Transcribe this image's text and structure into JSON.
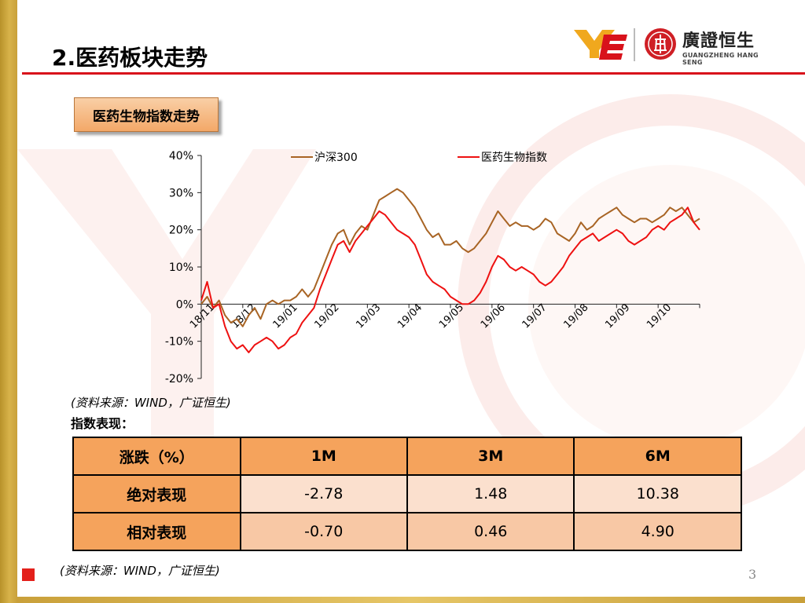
{
  "page": {
    "title": "2.医药板块走势",
    "page_number": "3"
  },
  "logo": {
    "cn": "廣證恒生",
    "en": "GUANGZHENG HANG SENG",
    "brand_color": "#cf1f25",
    "accent_color": "#f0a81e"
  },
  "section": {
    "label": "医药生物指数走势"
  },
  "chart_data": {
    "type": "line",
    "title": "",
    "xlabel": "",
    "ylabel": "",
    "y_tick_labels": [
      "40%",
      "30%",
      "20%",
      "10%",
      "0%",
      "-10%",
      "-20%"
    ],
    "ylim": [
      -20,
      40
    ],
    "x_tick_labels": [
      "18/11",
      "18/12",
      "19/01",
      "19/02",
      "19/03",
      "19/04",
      "19/05",
      "19/06",
      "19/07",
      "19/08",
      "19/09",
      "19/10"
    ],
    "legend_position": "top",
    "series": [
      {
        "name": "沪深300",
        "color": "#a86424",
        "values": [
          0,
          2,
          -1,
          1,
          -3,
          -5,
          -4,
          -6,
          -3,
          -1,
          -4,
          0,
          1,
          0,
          1,
          1,
          2,
          4,
          2,
          4,
          8,
          12,
          16,
          19,
          20,
          16,
          19,
          21,
          20,
          24,
          28,
          29,
          30,
          31,
          30,
          28,
          26,
          23,
          20,
          18,
          19,
          16,
          16,
          17,
          15,
          14,
          15,
          17,
          19,
          22,
          25,
          23,
          21,
          22,
          21,
          21,
          20,
          21,
          23,
          22,
          19,
          18,
          17,
          19,
          22,
          20,
          21,
          23,
          24,
          25,
          26,
          24,
          23,
          22,
          23,
          23,
          22,
          23,
          24,
          26,
          25,
          26,
          24,
          22,
          23
        ]
      },
      {
        "name": "医药生物指数",
        "color": "#ee1111",
        "values": [
          1,
          6,
          -1,
          0,
          -6,
          -10,
          -12,
          -11,
          -13,
          -11,
          -10,
          -9,
          -10,
          -12,
          -11,
          -9,
          -8,
          -5,
          -3,
          -1,
          4,
          8,
          12,
          16,
          17,
          14,
          17,
          19,
          21,
          23,
          25,
          24,
          22,
          20,
          19,
          18,
          16,
          12,
          8,
          6,
          5,
          4,
          2,
          1,
          0,
          0,
          1,
          3,
          6,
          10,
          13,
          12,
          10,
          9,
          10,
          9,
          8,
          6,
          5,
          6,
          8,
          10,
          13,
          15,
          17,
          18,
          19,
          17,
          18,
          19,
          20,
          19,
          17,
          16,
          17,
          18,
          20,
          21,
          20,
          22,
          23,
          24,
          26,
          22,
          20
        ]
      }
    ]
  },
  "sources": {
    "chart_source": "(资料来源：WIND，广证恒生)",
    "table_source": "(资料来源：WIND，广证恒生)"
  },
  "table": {
    "caption": "指数表现：",
    "headers": [
      "涨跌（%）",
      "1M",
      "3M",
      "6M"
    ],
    "rows": [
      {
        "label": "绝对表现",
        "values": [
          "-2.78",
          "1.48",
          "10.38"
        ]
      },
      {
        "label": "相对表现",
        "values": [
          "-0.70",
          "0.46",
          "4.90"
        ]
      }
    ]
  }
}
